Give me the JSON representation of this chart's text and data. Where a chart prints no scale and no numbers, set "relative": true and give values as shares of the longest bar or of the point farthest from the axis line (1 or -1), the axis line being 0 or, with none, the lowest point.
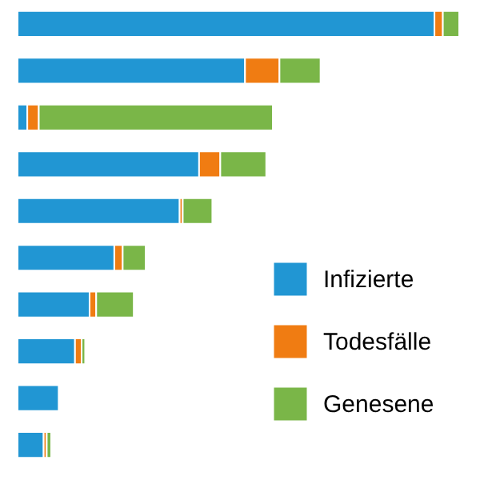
{
  "chart_data": {
    "type": "bar",
    "orientation": "horizontal",
    "stacked": true,
    "relative": true,
    "legend": "bottom right",
    "categories": [
      null,
      null,
      null,
      null,
      null,
      null,
      null,
      null,
      null,
      null
    ],
    "series": [
      {
        "name": "Infizierte",
        "color": "#2196d3",
        "values": [
          0.944,
          0.515,
          0.022,
          0.411,
          0.367,
          0.219,
          0.163,
          0.13,
          0.093,
          0.059
        ]
      },
      {
        "name": "Todesfälle",
        "color": "#f07c12",
        "values": [
          0.019,
          0.078,
          0.026,
          0.048,
          0.007,
          0.019,
          0.015,
          0.015,
          null,
          0.007
        ]
      },
      {
        "name": "Genesene",
        "color": "#7ab648",
        "values": [
          0.037,
          0.093,
          0.53,
          0.104,
          0.067,
          0.052,
          0.085,
          0.008,
          null,
          0.01
        ]
      }
    ]
  }
}
